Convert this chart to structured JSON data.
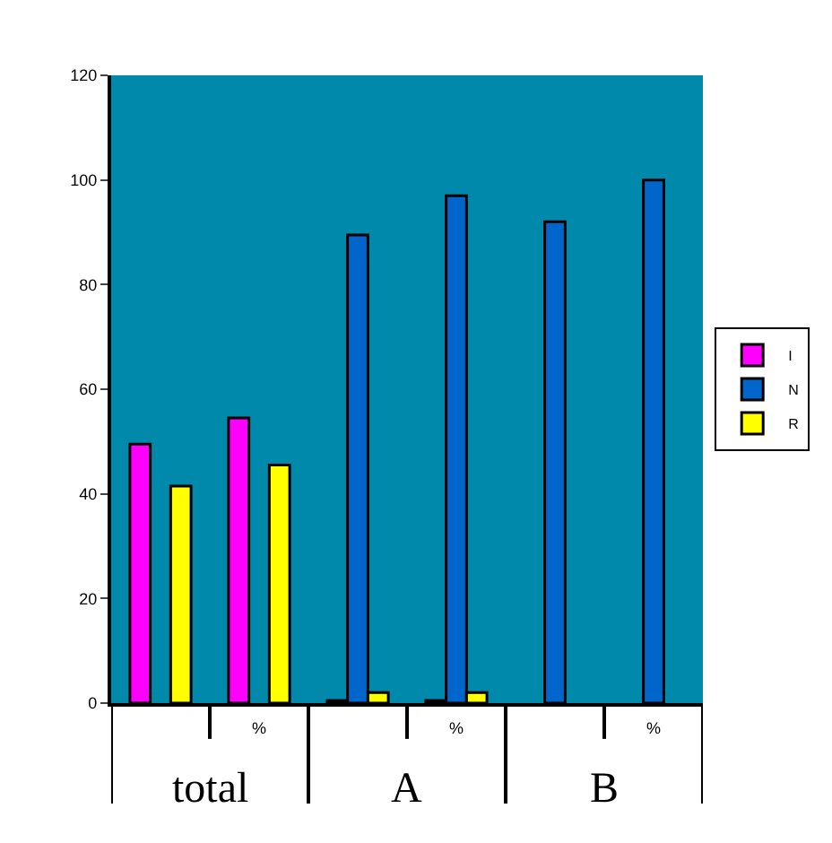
{
  "chart_data": {
    "type": "bar",
    "categories": [
      null,
      "%",
      null,
      "%",
      null,
      "%"
    ],
    "series": [
      {
        "name": "I",
        "color": "#ff00ff",
        "values": [
          49.5,
          54.5,
          0.5,
          0.5,
          null,
          null
        ]
      },
      {
        "name": "N",
        "color": "#0066cc",
        "values": [
          null,
          null,
          89.5,
          97,
          92,
          100
        ]
      },
      {
        "name": "R",
        "color": "#ffff00",
        "values": [
          41.5,
          45.5,
          2,
          2,
          null,
          null
        ]
      }
    ],
    "annotations": [
      "total",
      "A",
      "B"
    ],
    "ylim": [
      0,
      120
    ],
    "yticks": [
      0,
      20,
      40,
      60,
      80,
      100,
      120
    ],
    "grid": false,
    "legend": "right"
  }
}
